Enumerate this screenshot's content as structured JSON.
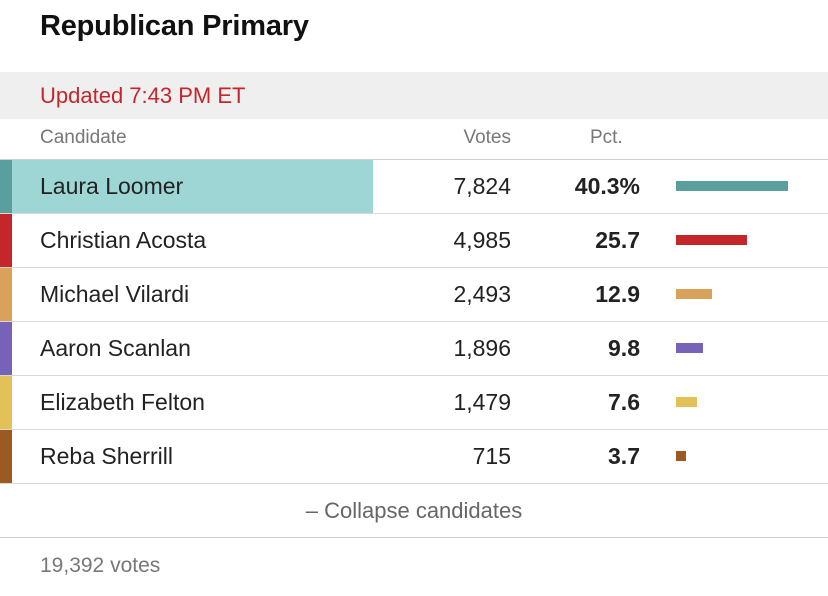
{
  "title": "Republican Primary",
  "updated": "Updated 7:43 PM ET",
  "columns": {
    "candidate": "Candidate",
    "votes": "Votes",
    "pct": "Pct."
  },
  "candidates": [
    {
      "name": "Laura Loomer",
      "votes": "7,824",
      "pct": "40.3%",
      "pct_value": 40.3,
      "color": "#5b9e9e",
      "leader": true,
      "highlight": "#9ed5d5"
    },
    {
      "name": "Christian Acosta",
      "votes": "4,985",
      "pct": "25.7",
      "pct_value": 25.7,
      "color": "#c4262b"
    },
    {
      "name": "Michael Vilardi",
      "votes": "2,493",
      "pct": "12.9",
      "pct_value": 12.9,
      "color": "#d9a15a"
    },
    {
      "name": "Aaron Scanlan",
      "votes": "1,896",
      "pct": "9.8",
      "pct_value": 9.8,
      "color": "#7663b8"
    },
    {
      "name": "Elizabeth Felton",
      "votes": "1,479",
      "pct": "7.6",
      "pct_value": 7.6,
      "color": "#e3c158"
    },
    {
      "name": "Reba Sherrill",
      "votes": "715",
      "pct": "3.7",
      "pct_value": 3.7,
      "color": "#9b5a22"
    }
  ],
  "collapse_label": "– Collapse candidates",
  "total_votes": "19,392 votes"
}
